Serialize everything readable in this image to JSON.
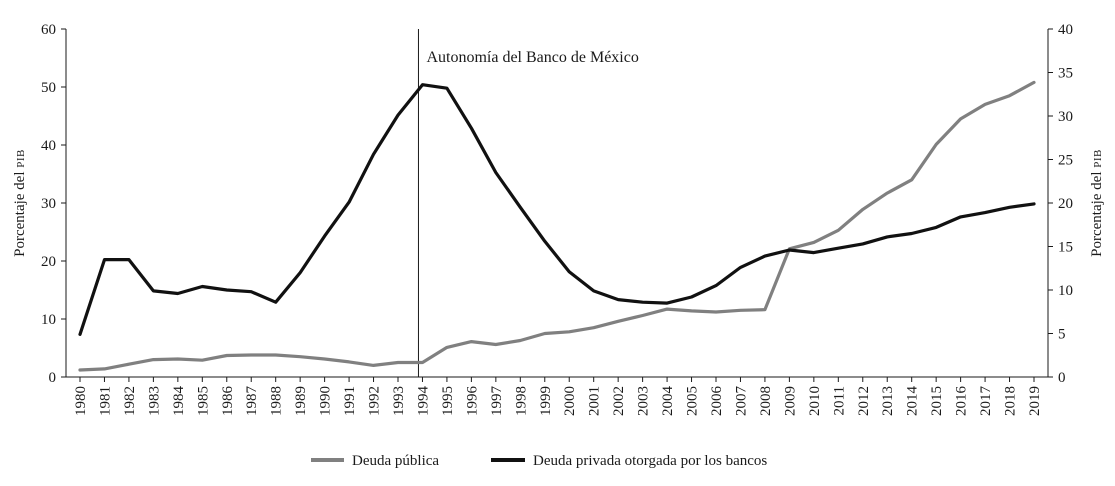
{
  "chart_data": {
    "type": "line",
    "title": "",
    "x": [
      "1980",
      "1981",
      "1982",
      "1983",
      "1984",
      "1985",
      "1986",
      "1987",
      "1988",
      "1989",
      "1990",
      "1991",
      "1992",
      "1993",
      "1994",
      "1995",
      "1996",
      "1997",
      "1998",
      "1999",
      "2000",
      "2001",
      "2002",
      "2003",
      "2004",
      "2005",
      "2006",
      "2007",
      "2008",
      "2009",
      "2010",
      "2011",
      "2012",
      "2013",
      "2014",
      "2015",
      "2016",
      "2017",
      "2018",
      "2019"
    ],
    "ylabel_left": "Porcentaje del",
    "ylabel_left_sc": "PIB",
    "ylabel_right": "Porcentaje del",
    "ylabel_right_sc": "PIB",
    "ylim_left": [
      0,
      60
    ],
    "yticks_left": [
      "0",
      "10",
      "20",
      "30",
      "40",
      "50",
      "60"
    ],
    "ylim_right": [
      0,
      40
    ],
    "yticks_right": [
      "0",
      "5",
      "10",
      "15",
      "20",
      "25",
      "30",
      "35",
      "40"
    ],
    "grid": false,
    "legend_position": "bottom",
    "series": [
      {
        "name": "Deuda pública",
        "axis": "left",
        "color": "#808080",
        "values": [
          1.2,
          1.4,
          2.2,
          3.0,
          3.1,
          2.9,
          3.7,
          3.8,
          3.8,
          3.5,
          3.1,
          2.6,
          2.0,
          2.5,
          2.5,
          5.1,
          6.1,
          5.6,
          6.3,
          7.5,
          7.8,
          8.5,
          9.6,
          10.6,
          11.7,
          11.4,
          11.2,
          11.5,
          11.6,
          22.1,
          23.2,
          25.3,
          28.9,
          31.7,
          34.0,
          40.1,
          44.5,
          47.0,
          48.5,
          50.8
        ]
      },
      {
        "name": "Deuda privada otorgada por los bancos",
        "axis": "right",
        "color": "#111111",
        "values": [
          4.9,
          13.5,
          13.5,
          9.9,
          9.6,
          10.4,
          10.0,
          9.8,
          8.6,
          12.0,
          16.2,
          20.1,
          25.6,
          30.1,
          33.6,
          33.2,
          28.6,
          23.5,
          19.5,
          15.6,
          12.1,
          9.9,
          8.9,
          8.6,
          8.5,
          9.2,
          10.5,
          12.6,
          13.9,
          14.6,
          14.3,
          14.8,
          15.3,
          16.1,
          16.5,
          17.2,
          18.4,
          18.9,
          19.5,
          19.9
        ]
      }
    ],
    "annotation": {
      "text": "Autonomía del Banco de México",
      "at_x": "1994"
    }
  }
}
